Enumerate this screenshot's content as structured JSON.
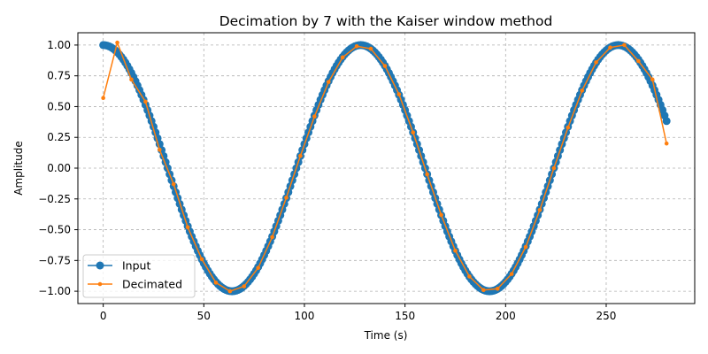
{
  "chart_data": {
    "type": "line",
    "title": "Decimation by 7 with the Kaiser window method",
    "xlabel": "Time (s)",
    "ylabel": "Amplitude",
    "xlim": [
      -12.6,
      294
    ],
    "ylim": [
      -1.1,
      1.1
    ],
    "x_ticks": [
      0,
      50,
      100,
      150,
      200,
      250
    ],
    "x_tick_labels": [
      "0",
      "50",
      "100",
      "150",
      "200",
      "250"
    ],
    "y_ticks": [
      -1.0,
      -0.75,
      -0.5,
      -0.25,
      0.0,
      0.25,
      0.5,
      0.75,
      1.0
    ],
    "y_tick_labels": [
      "−1.00",
      "−0.75",
      "−0.50",
      "−0.25",
      "0.00",
      "0.25",
      "0.50",
      "0.75",
      "1.00"
    ],
    "grid": true,
    "legend_position": "lower-left",
    "series": [
      {
        "name": "Input",
        "color": "#1f77b4",
        "marker": "circle",
        "function": "cosine",
        "period": 128,
        "x_start": 0,
        "x_end": 280,
        "x_step": 1
      },
      {
        "name": "Decimated",
        "color": "#ff7f0e",
        "marker": "point",
        "x": [
          0,
          7,
          14,
          21,
          28,
          35,
          42,
          49,
          56,
          63,
          70,
          77,
          84,
          91,
          98,
          105,
          112,
          119,
          126,
          133,
          140,
          147,
          154,
          161,
          168,
          175,
          182,
          189,
          196,
          203,
          210,
          217,
          224,
          231,
          238,
          245,
          252,
          259,
          266,
          273,
          280
        ],
        "y": [
          0.57,
          1.02,
          0.72,
          0.54,
          0.15,
          -0.13,
          -0.48,
          -0.74,
          -0.93,
          -1.0,
          -0.96,
          -0.81,
          -0.56,
          -0.24,
          0.1,
          0.42,
          0.7,
          0.9,
          0.99,
          0.97,
          0.83,
          0.6,
          0.29,
          -0.05,
          -0.38,
          -0.67,
          -0.88,
          -0.99,
          -0.98,
          -0.86,
          -0.64,
          -0.34,
          0.0,
          0.33,
          0.63,
          0.86,
          0.98,
          1.0,
          0.87,
          0.72,
          0.2
        ]
      }
    ]
  }
}
